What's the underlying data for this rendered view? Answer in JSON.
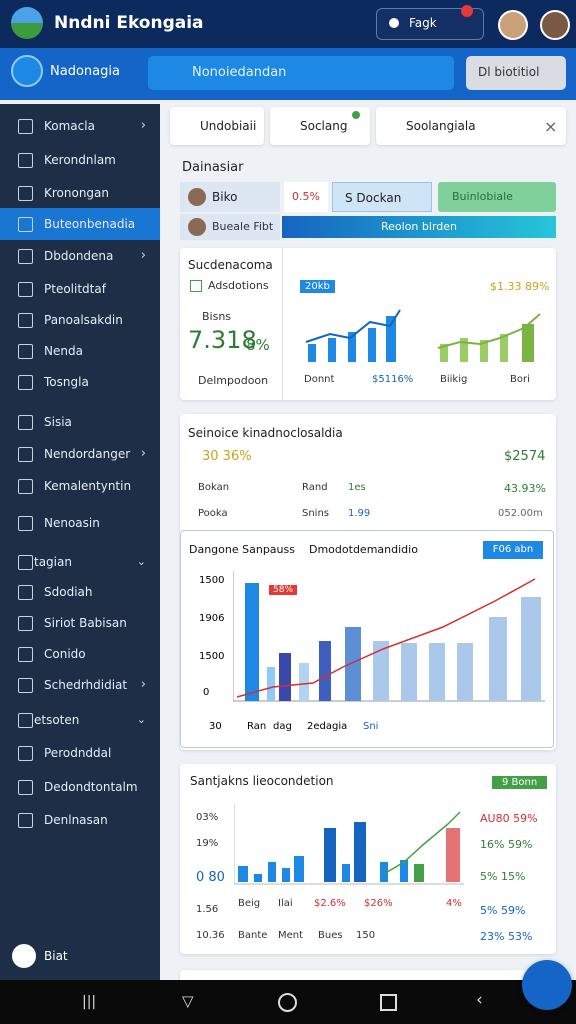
{
  "header": {
    "title": "Nndni Ekongaia",
    "button": "Fagk"
  },
  "toolbar": {
    "label": "Nadonagia",
    "search": "Nonoiedandan",
    "filter": "Dl biotitiol"
  },
  "sidebar": {
    "items": [
      "Komacla",
      "Kerondnlam",
      "Kronongan",
      "Buteonbenadia",
      "Dbdondena",
      "Pteolitdtaf",
      "Panoalsakdin",
      "Nenda",
      "Tosngla",
      "Sisia",
      "Nendordanger",
      "Kemalentyntin",
      "Nenoasin",
      "tagian",
      "Sdodiah",
      "Siriot Babisan",
      "Conido",
      "Schedrhdidiat",
      "etsoten",
      "Perodnddal",
      "Dedondtontalm",
      "Denlnasan"
    ],
    "footer": "Biat"
  },
  "tabs": [
    "Undobiaii",
    "Soclang",
    "Soolangiala"
  ],
  "card1": {
    "title": "Dainasiar",
    "name1": "Biko",
    "value1": "0.5%",
    "chip": "S Dockan",
    "action": "Buinlobiale",
    "name2": "Bueale Fibt",
    "bar": "Reolon blrden"
  },
  "card2": {
    "title": "Sucdenacoma",
    "check": "Adsdotions",
    "trend": "Bisns",
    "big": "7.318",
    "pct": "8%",
    "foot": "Delmpodoon",
    "badge": "20kb",
    "right": "$1.33 89%",
    "labels": [
      "Donnt",
      "$5116%",
      "Biikig",
      "Bori"
    ]
  },
  "card3": {
    "title": "Seinoice kinadnoclosaldia",
    "kpi": "30 36%",
    "kpi_right": "$2574",
    "rows": [
      [
        "Bokan",
        "Rand",
        "1es",
        "43.93%"
      ],
      [
        "Pooka",
        "Snins",
        "1.99",
        "052.00m"
      ]
    ],
    "chart": {
      "title": "Dangone Sanpauss",
      "dropdown": "Dmodotdemandidio",
      "button": "F06 abn",
      "yaxis": [
        "1500",
        "1906",
        "1500",
        "0",
        "30"
      ],
      "tag": "58%",
      "xlabels": [
        "Ran",
        "dag",
        "2edagia",
        "Sni"
      ]
    }
  },
  "card4": {
    "title": "Santjakns lieocondetion",
    "badge": "9 Bonn",
    "left": [
      "03%",
      "19%",
      "0 80",
      "1.56",
      "10.36"
    ],
    "right": [
      "AU80 59%",
      "16% 59%",
      "5% 15%",
      "5% 59%",
      "23% 53%"
    ],
    "xlabels": [
      "Beig",
      "Ilai",
      "$2.6%",
      "$26%",
      "4%"
    ],
    "foot": [
      "Bante",
      "Ment",
      "Bues",
      "150"
    ]
  }
}
